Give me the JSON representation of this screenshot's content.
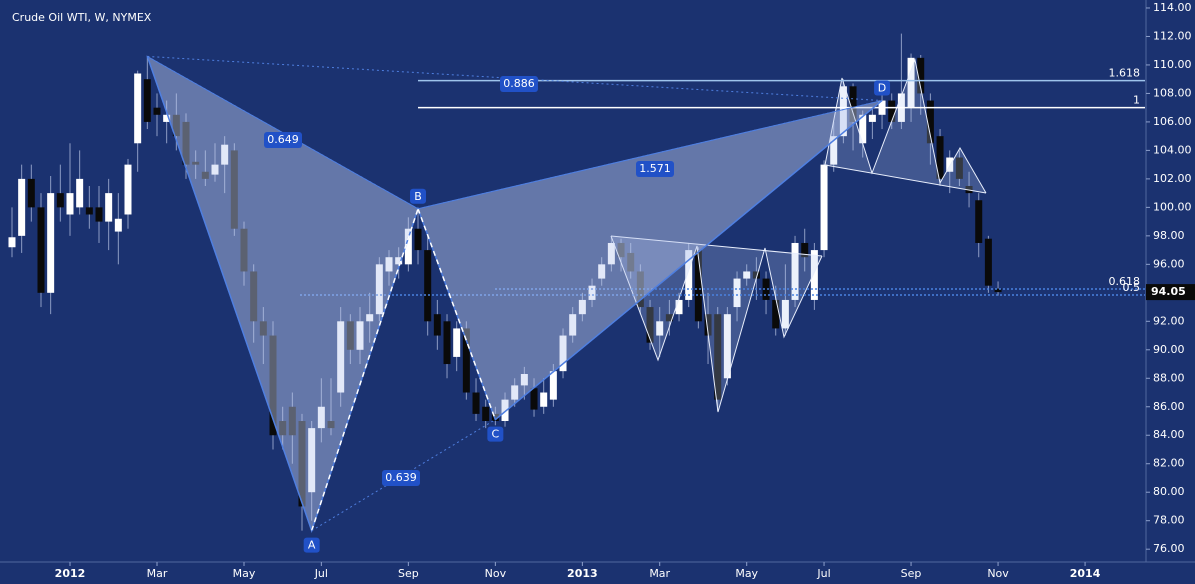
{
  "chart_data": {
    "type": "candlestick",
    "title": "Crude Oil WTI, W, NYMEX",
    "up_color": "#ffffff",
    "down_color": "#0a0a0a",
    "background": "#1b3270",
    "open": [
      97.2,
      98,
      102,
      100,
      94,
      101,
      99.5,
      100,
      100,
      100,
      99,
      98.3,
      99.5,
      104.5,
      109,
      107,
      106,
      106.5,
      106,
      103.2,
      102.5,
      102.3,
      103,
      104,
      98.5,
      95.5,
      92,
      91,
      85,
      86,
      85,
      80,
      84.5,
      85,
      87,
      92,
      90,
      92,
      92.5,
      95.5,
      96,
      96,
      98.5,
      97,
      92.5,
      92,
      89.5,
      91.5,
      87,
      86,
      85.5,
      85,
      86.5,
      87.5,
      87.3,
      86,
      86.5,
      88.5,
      91,
      92.5,
      93.5,
      95,
      96,
      97.5,
      96.8,
      95.5,
      93,
      91,
      92.5,
      92.5,
      93.5,
      97,
      92.5,
      92.5,
      88,
      93,
      95,
      95.5,
      95,
      93.5,
      91.5,
      93.5,
      97.5,
      93.5,
      97,
      103,
      105,
      108.5,
      104.5,
      106,
      106.5,
      107.5,
      106,
      107,
      110.5,
      107.5,
      105,
      102.5,
      103.5,
      101.5,
      100.5,
      97.8,
      94.3
    ],
    "high": [
      100,
      103,
      103,
      101,
      102.2,
      103,
      104.5,
      104,
      101.5,
      101.5,
      102,
      101,
      103.4,
      109.6,
      110.6,
      108,
      107.5,
      108,
      106.6,
      104,
      104,
      104.5,
      105,
      104.5,
      99,
      96,
      93,
      92,
      86,
      87,
      85.5,
      85,
      88,
      88,
      93,
      92.5,
      93,
      94,
      96.5,
      97,
      97.2,
      99.3,
      99.9,
      98,
      93.5,
      92.5,
      92,
      92,
      88,
      86.5,
      86,
      87,
      88,
      88.8,
      88,
      88,
      89,
      91.5,
      93,
      94,
      95,
      96.5,
      98,
      97.8,
      97.5,
      96,
      93.5,
      93,
      93.5,
      94,
      97.5,
      97.2,
      94,
      93,
      93,
      95.5,
      96,
      96.5,
      95.5,
      94.5,
      96,
      98,
      98.5,
      97.5,
      103.3,
      106,
      109,
      108.7,
      106.8,
      107,
      108,
      108,
      112.2,
      110.8,
      110.7,
      108,
      105.5,
      104,
      104,
      102.5,
      101,
      98,
      94.8
    ],
    "low": [
      96.5,
      96.8,
      99,
      93,
      92.5,
      99,
      98,
      99.5,
      98.5,
      97.5,
      97,
      96,
      98.5,
      102.5,
      105.5,
      105,
      104.5,
      104,
      102,
      102,
      101.5,
      101.8,
      101,
      98,
      94.5,
      90.5,
      89,
      83,
      83,
      82,
      77.3,
      78,
      83.5,
      84,
      86,
      89,
      89,
      90.5,
      92,
      94.5,
      95,
      95.5,
      96,
      91,
      90,
      88,
      88.5,
      86.5,
      85,
      84.5,
      84.7,
      84.6,
      86,
      86.5,
      85.3,
      85.5,
      86,
      88,
      90.5,
      92,
      93,
      94.5,
      95.5,
      95.5,
      95,
      92.5,
      90,
      89.5,
      91,
      92,
      93,
      91.5,
      89,
      85.7,
      87.5,
      92,
      94.5,
      93.5,
      92.5,
      91,
      91,
      93,
      95.5,
      92.8,
      96.5,
      102.5,
      104.5,
      104,
      103.5,
      104.8,
      105.5,
      105.5,
      105.5,
      106,
      106.5,
      103,
      101.5,
      101,
      101.5,
      100,
      96.5,
      94,
      93.8
    ],
    "close": [
      97.9,
      102,
      100,
      94,
      101,
      100,
      101,
      102,
      99.5,
      99,
      101,
      99.2,
      103,
      109.4,
      106,
      106.5,
      106.5,
      105,
      103,
      103,
      102,
      103,
      104.4,
      98.5,
      95.5,
      92,
      91,
      84,
      84,
      84,
      79,
      84.5,
      86,
      84.5,
      92,
      90,
      92,
      92.5,
      96,
      96.5,
      96.5,
      98.5,
      97,
      92,
      91,
      89,
      91.5,
      87,
      85.5,
      85,
      85,
      86.5,
      87.5,
      88.3,
      85.8,
      87,
      88.5,
      91,
      92.5,
      93.5,
      94.5,
      96,
      97.5,
      96.5,
      95.5,
      93,
      90.5,
      92,
      92,
      93.5,
      97,
      92,
      91,
      86.5,
      92.5,
      95,
      95.5,
      95,
      93.5,
      91.5,
      93.5,
      97.5,
      96.5,
      97,
      103,
      105,
      108.5,
      106,
      106.5,
      106.5,
      107.5,
      106,
      108,
      110.5,
      108,
      104.5,
      102,
      103.5,
      102,
      101,
      97.5,
      94.5,
      94.05
    ],
    "last_price": 94.05,
    "xlim": [
      -1.24,
      117.2
    ],
    "ylim": [
      75.1,
      114.56
    ],
    "xticks": [
      {
        "value": 6,
        "label": "2012"
      },
      {
        "value": 15,
        "label": "Mar"
      },
      {
        "value": 24,
        "label": "May"
      },
      {
        "value": 32,
        "label": "Jul"
      },
      {
        "value": 41,
        "label": "Sep"
      },
      {
        "value": 50,
        "label": "Nov"
      },
      {
        "value": 59,
        "label": "2013"
      },
      {
        "value": 67,
        "label": "Mar"
      },
      {
        "value": 76,
        "label": "May"
      },
      {
        "value": 84,
        "label": "Jul"
      },
      {
        "value": 93,
        "label": "Sep"
      },
      {
        "value": 102,
        "label": "Nov"
      },
      {
        "value": 111,
        "label": "2014"
      }
    ],
    "yticks": [
      {
        "value": 76,
        "label": "76.00"
      },
      {
        "value": 78,
        "label": "78.00"
      },
      {
        "value": 80,
        "label": "80.00"
      },
      {
        "value": 82,
        "label": "82.00"
      },
      {
        "value": 84,
        "label": "84.00"
      },
      {
        "value": 86,
        "label": "86.00"
      },
      {
        "value": 88,
        "label": "88.00"
      },
      {
        "value": 90,
        "label": "90.00"
      },
      {
        "value": 92,
        "label": "92.00"
      },
      {
        "value": 94,
        "label": "94.00"
      },
      {
        "value": 96,
        "label": "96.00"
      },
      {
        "value": 98,
        "label": "98.00"
      },
      {
        "value": 100,
        "label": "100.00"
      },
      {
        "value": 102,
        "label": "102.00"
      },
      {
        "value": 104,
        "label": "104.00"
      },
      {
        "value": 106,
        "label": "106.00"
      },
      {
        "value": 108,
        "label": "108.00"
      },
      {
        "value": 110,
        "label": "110.00"
      },
      {
        "value": 112,
        "label": "112.00"
      },
      {
        "value": 114,
        "label": "114.00"
      }
    ],
    "harmonic": {
      "x": [
        14,
        31,
        42,
        50,
        90
      ],
      "y": [
        110.6,
        77.3,
        99.9,
        85.1,
        107.5
      ],
      "labels": [
        null,
        "A",
        "B",
        "C",
        "D"
      ],
      "ratios": [
        "0.649",
        "0.639",
        "1.571",
        "0.886"
      ]
    },
    "fib_levels": {
      "ratios": [
        "1.618",
        "1",
        "0.618",
        "0.5"
      ],
      "prices": [
        108.9,
        107,
        94.27,
        93.85
      ]
    }
  }
}
